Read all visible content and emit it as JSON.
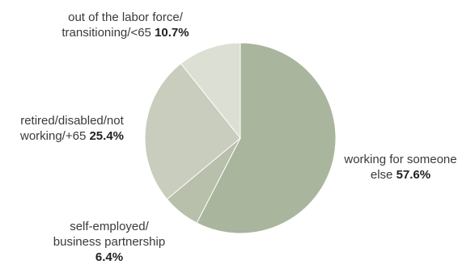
{
  "chart_data": {
    "type": "pie",
    "title": "",
    "legend": "none",
    "slices": [
      {
        "label": "working for someone else",
        "value": 57.6,
        "value_label": "57.6%",
        "color": "#a9b59c"
      },
      {
        "label": "self-employed/ business partnership",
        "value": 6.4,
        "value_label": "6.4%",
        "color": "#b8bfaa"
      },
      {
        "label": "retired/disabled/not working/+65",
        "value": 25.4,
        "value_label": "25.4%",
        "color": "#c8cdbd"
      },
      {
        "label": "out of the labor force/ transitioning/<65",
        "value": 10.7,
        "value_label": "10.7%",
        "color": "#dcdfd3"
      }
    ],
    "labels": {
      "working": {
        "line1": "working for someone",
        "line2": "else",
        "value": "57.6%"
      },
      "self": {
        "line1": "self-employed/",
        "line2": "business partnership",
        "value": "6.4%"
      },
      "retired": {
        "line1": "retired/disabled/not",
        "line2": "working/+65",
        "value": "25.4%"
      },
      "labor": {
        "line1": "out of the labor force/",
        "line2": "transitioning/<65",
        "value": "10.7%"
      }
    }
  }
}
